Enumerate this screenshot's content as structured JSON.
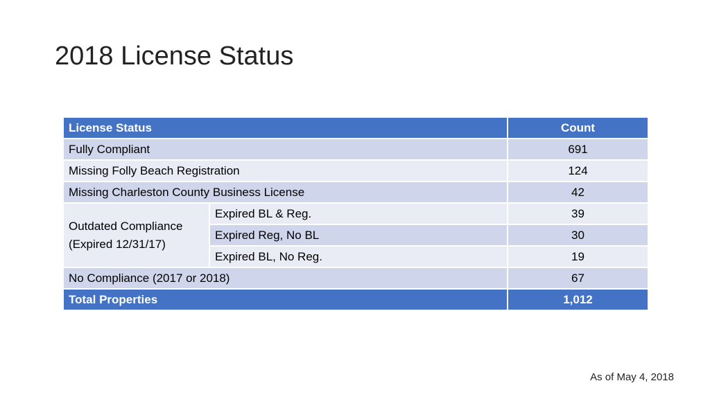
{
  "slide": {
    "title": "2018 License Status",
    "footnote": "As of May 4, 2018"
  },
  "colors": {
    "header": "#4472c4",
    "row_dark": "#cfd5ea",
    "row_light": "#e9ebf5"
  },
  "table": {
    "header": {
      "status": "License Status",
      "count": "Count"
    },
    "rows": [
      {
        "status": "Fully Compliant",
        "count": "691"
      },
      {
        "status": "Missing Folly Beach Registration",
        "count": "124"
      },
      {
        "status": "Missing Charleston County Business License",
        "count": "42"
      }
    ],
    "outdated": {
      "label_line1": "Outdated Compliance",
      "label_line2": "(Expired 12/31/17)",
      "subrows": [
        {
          "status": "Expired BL & Reg.",
          "count": "39"
        },
        {
          "status": "Expired Reg, No BL",
          "count": "30"
        },
        {
          "status": "Expired BL, No Reg.",
          "count": "19"
        }
      ]
    },
    "no_compliance": {
      "status": "No Compliance (2017 or 2018)",
      "count": "67"
    },
    "total": {
      "status": "Total Properties",
      "count": "1,012"
    }
  }
}
